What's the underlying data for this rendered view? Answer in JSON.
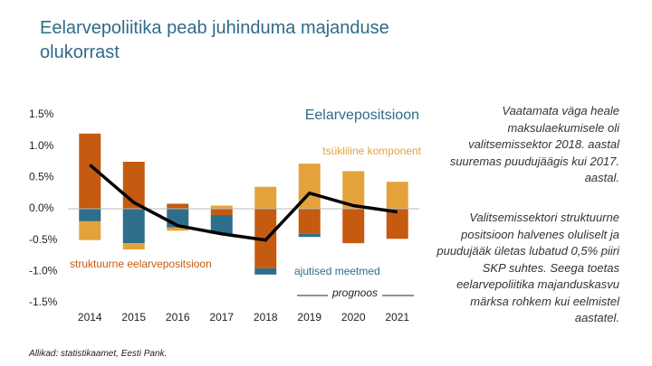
{
  "chart_data": {
    "type": "bar",
    "title": "Eelarvepoliitika peab juhinduma majanduse olukorrast",
    "categories": [
      "2014",
      "2015",
      "2016",
      "2017",
      "2018",
      "2019",
      "2020",
      "2021"
    ],
    "series": [
      {
        "name": "struktuurne eelarvepositsioon",
        "color": "#c55a11",
        "values": [
          1.2,
          0.75,
          0.08,
          -0.1,
          -0.95,
          -0.4,
          -0.55,
          -0.48
        ]
      },
      {
        "name": "ajutised meetmed",
        "color": "#2e6e8a",
        "values": [
          -0.2,
          -0.55,
          -0.3,
          -0.3,
          -0.1,
          -0.05,
          0,
          0
        ]
      },
      {
        "name": "tsükliline komponent",
        "color": "#e3a33a",
        "values": [
          -0.3,
          -0.1,
          -0.05,
          0.05,
          0.35,
          0.72,
          0.6,
          0.43
        ]
      },
      {
        "name": "Eelarvepositsioon",
        "type": "line",
        "color": "#000000",
        "values": [
          0.7,
          0.1,
          -0.27,
          -0.4,
          -0.5,
          0.25,
          0.05,
          -0.05
        ]
      }
    ],
    "annotations": [
      "prognoos"
    ],
    "ylim": [
      -1.5,
      1.5
    ],
    "yticks": [
      {
        "value": -1.5,
        "label": "-1.5%"
      },
      {
        "value": -1.0,
        "label": "-1.0%"
      },
      {
        "value": -0.5,
        "label": "-0.5%"
      },
      {
        "value": 0,
        "label": "0.0%"
      },
      {
        "value": 0.5,
        "label": "0.5%"
      },
      {
        "value": 1.0,
        "label": "1.0%"
      },
      {
        "value": 1.5,
        "label": "1.5%"
      }
    ],
    "grid": false
  },
  "notes": [
    "Vaatamata väga heale maksulaekumisele oli valitsemissektor 2018. aastal suuremas puudujäägis kui 2017. aastal.",
    "Valitsemissektori struktuurne positsioon halvenes oluliselt ja puudujääk ületas lubatud 0,5% piiri SKP suhtes. Seega toetas eelarvepoliitika majanduskasvu märksa rohkem kui eelmistel aastatel."
  ],
  "source": "Allikad: statistikaamet, Eesti Pank."
}
